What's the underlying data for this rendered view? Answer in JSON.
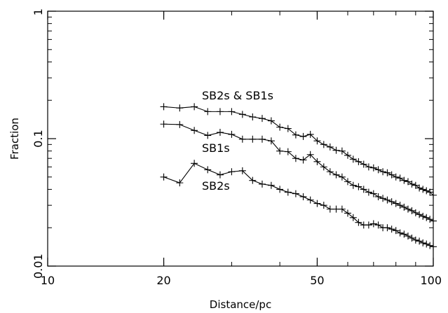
{
  "chart_data": {
    "type": "line",
    "title": "",
    "xlabel": "Distance/pc",
    "ylabel": "Fraction",
    "xscale": "log",
    "yscale": "log",
    "xlim": [
      10,
      100
    ],
    "ylim": [
      0.01,
      1
    ],
    "grid": false,
    "x_ticks": [
      {
        "value": 10,
        "label": "10"
      },
      {
        "value": 20,
        "label": "20"
      },
      {
        "value": 50,
        "label": "50"
      },
      {
        "value": 100,
        "label": "100"
      }
    ],
    "y_ticks": [
      {
        "value": 0.01,
        "label": "0.01"
      },
      {
        "value": 0.1,
        "label": "0.1"
      },
      {
        "value": 1,
        "label": "1"
      }
    ],
    "series": [
      {
        "name": "SB2s & SB1s",
        "x": [
          20,
          22,
          24,
          26,
          28,
          30,
          32,
          34,
          36,
          38,
          40,
          42,
          44,
          46,
          48,
          50,
          52,
          54,
          56,
          58,
          60,
          62,
          64,
          66,
          68,
          70,
          72,
          74,
          76,
          78,
          80,
          82,
          84,
          86,
          88,
          90,
          92,
          94,
          96,
          98,
          100
        ],
        "y": [
          0.178,
          0.174,
          0.178,
          0.163,
          0.163,
          0.163,
          0.155,
          0.148,
          0.144,
          0.138,
          0.123,
          0.12,
          0.107,
          0.104,
          0.108,
          0.096,
          0.09,
          0.086,
          0.081,
          0.08,
          0.074,
          0.069,
          0.066,
          0.063,
          0.06,
          0.059,
          0.057,
          0.055,
          0.054,
          0.052,
          0.05,
          0.049,
          0.047,
          0.046,
          0.044,
          0.043,
          0.041,
          0.04,
          0.039,
          0.038,
          0.036
        ]
      },
      {
        "name": "SB1s",
        "x": [
          20,
          22,
          24,
          26,
          28,
          30,
          32,
          34,
          36,
          38,
          40,
          42,
          44,
          46,
          48,
          50,
          52,
          54,
          56,
          58,
          60,
          62,
          64,
          66,
          68,
          70,
          72,
          74,
          76,
          78,
          80,
          82,
          84,
          86,
          88,
          90,
          92,
          94,
          96,
          98,
          100
        ],
        "y": [
          0.13,
          0.129,
          0.116,
          0.106,
          0.112,
          0.108,
          0.099,
          0.099,
          0.099,
          0.096,
          0.08,
          0.079,
          0.07,
          0.068,
          0.075,
          0.066,
          0.06,
          0.055,
          0.052,
          0.05,
          0.046,
          0.043,
          0.042,
          0.04,
          0.038,
          0.037,
          0.035,
          0.034,
          0.033,
          0.032,
          0.031,
          0.03,
          0.029,
          0.028,
          0.0272,
          0.0262,
          0.0254,
          0.0246,
          0.024,
          0.0233,
          0.0226
        ]
      },
      {
        "name": "SB2s",
        "x": [
          20,
          22,
          24,
          26,
          28,
          30,
          32,
          34,
          36,
          38,
          40,
          42,
          44,
          46,
          48,
          50,
          52,
          54,
          56,
          58,
          60,
          62,
          64,
          66,
          68,
          70,
          72,
          74,
          76,
          78,
          80,
          82,
          84,
          86,
          88,
          90,
          92,
          94,
          96,
          98,
          100
        ],
        "y": [
          0.05,
          0.045,
          0.064,
          0.057,
          0.052,
          0.055,
          0.056,
          0.047,
          0.044,
          0.043,
          0.04,
          0.038,
          0.037,
          0.035,
          0.033,
          0.031,
          0.03,
          0.028,
          0.028,
          0.028,
          0.026,
          0.024,
          0.022,
          0.021,
          0.021,
          0.0215,
          0.021,
          0.02,
          0.02,
          0.0195,
          0.019,
          0.0182,
          0.0178,
          0.0172,
          0.0166,
          0.016,
          0.0157,
          0.0152,
          0.0149,
          0.0145,
          0.0142
        ]
      }
    ]
  }
}
